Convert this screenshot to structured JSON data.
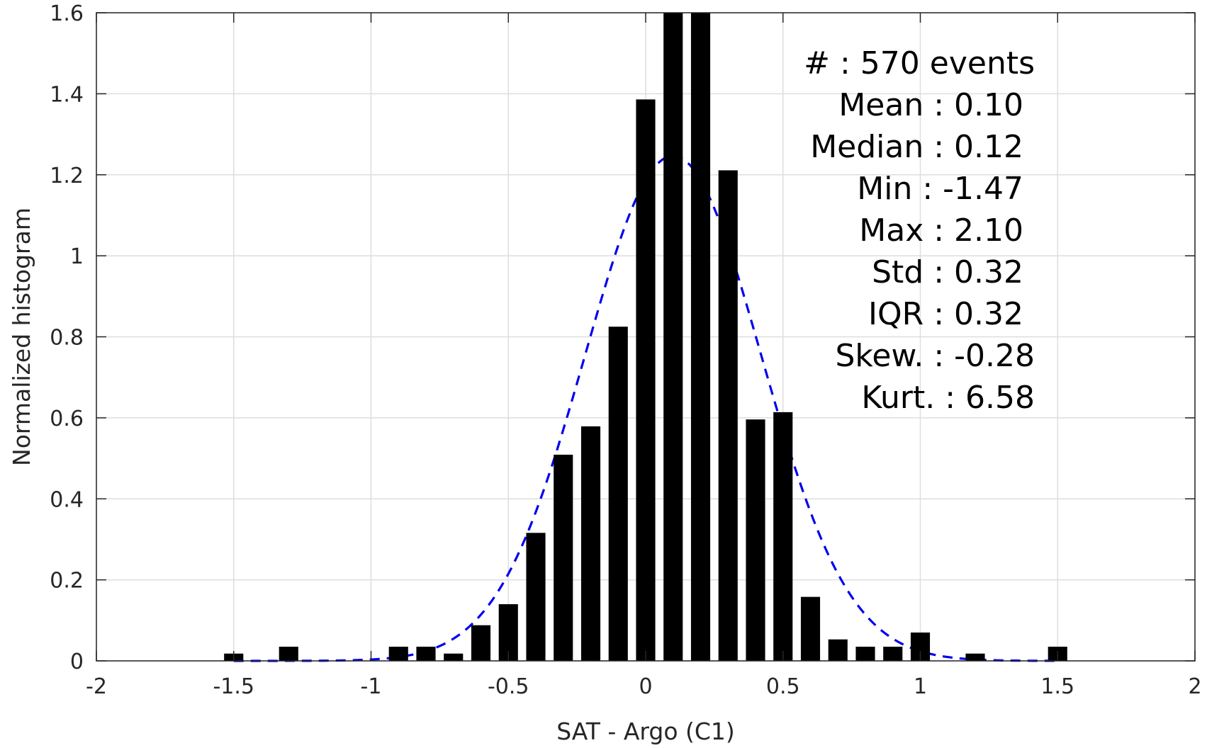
{
  "chart_data": {
    "type": "bar",
    "xlabel": "SAT - Argo (C1)",
    "ylabel": "Normalized histogram",
    "xlim": [
      -2,
      2
    ],
    "ylim": [
      0,
      1.6
    ],
    "xticks": [
      -2,
      -1.5,
      -1,
      -0.5,
      0,
      0.5,
      1,
      1.5,
      2
    ],
    "xtick_labels": [
      "-2",
      "-1.5",
      "-1",
      "-0.5",
      "0",
      "0.5",
      "1",
      "1.5",
      "2"
    ],
    "yticks": [
      0,
      0.2,
      0.4,
      0.6,
      0.8,
      1,
      1.2,
      1.4,
      1.6
    ],
    "ytick_labels": [
      "0",
      "0.2",
      "0.4",
      "0.6",
      "0.8",
      "1",
      "1.2",
      "1.4",
      "1.6"
    ],
    "grid": true,
    "bin_width": 0.1,
    "bars": [
      {
        "x": -1.5,
        "y": 0.018
      },
      {
        "x": -1.3,
        "y": 0.035
      },
      {
        "x": -0.9,
        "y": 0.035
      },
      {
        "x": -0.8,
        "y": 0.035
      },
      {
        "x": -0.7,
        "y": 0.018
      },
      {
        "x": -0.6,
        "y": 0.088
      },
      {
        "x": -0.5,
        "y": 0.14
      },
      {
        "x": -0.4,
        "y": 0.316
      },
      {
        "x": -0.3,
        "y": 0.509
      },
      {
        "x": -0.2,
        "y": 0.579
      },
      {
        "x": -0.1,
        "y": 0.825
      },
      {
        "x": 0.0,
        "y": 1.386
      },
      {
        "x": 0.1,
        "y": 1.6
      },
      {
        "x": 0.2,
        "y": 1.6
      },
      {
        "x": 0.3,
        "y": 1.211
      },
      {
        "x": 0.4,
        "y": 0.596
      },
      {
        "x": 0.5,
        "y": 0.614
      },
      {
        "x": 0.6,
        "y": 0.158
      },
      {
        "x": 0.7,
        "y": 0.053
      },
      {
        "x": 0.8,
        "y": 0.035
      },
      {
        "x": 0.9,
        "y": 0.035
      },
      {
        "x": 1.0,
        "y": 0.07
      },
      {
        "x": 1.2,
        "y": 0.018
      },
      {
        "x": 1.5,
        "y": 0.035
      }
    ],
    "fit_curve": {
      "style": "dashed",
      "color": "#0000ee",
      "mean": 0.1,
      "std": 0.32,
      "x_range": [
        -1.5,
        1.5
      ]
    },
    "bar_color": "#000000",
    "stats": [
      {
        "label": "#  : 570 events",
        "align": "outer"
      },
      {
        "label": "Mean : 0.10",
        "align": "inner"
      },
      {
        "label": "Median : 0.12",
        "align": "inner"
      },
      {
        "label": "Min : -1.47",
        "align": "inner"
      },
      {
        "label": "Max : 2.10",
        "align": "inner"
      },
      {
        "label": "Std : 0.32",
        "align": "inner"
      },
      {
        "label": "IQR : 0.32",
        "align": "inner"
      },
      {
        "label": "Skew. : -0.28",
        "align": "outer"
      },
      {
        "label": "Kurt. : 6.58",
        "align": "outer"
      }
    ]
  }
}
